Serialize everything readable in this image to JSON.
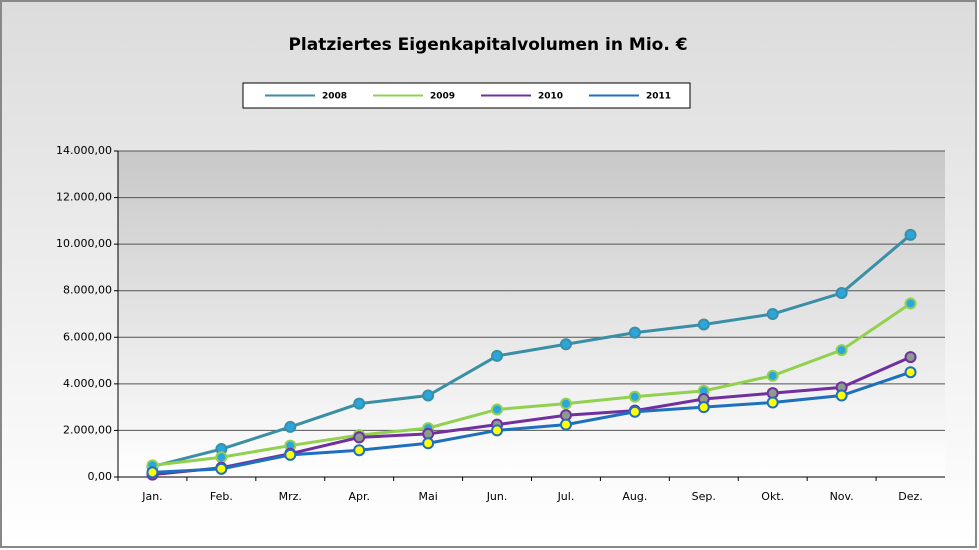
{
  "chart_data": {
    "type": "line",
    "title": "Platziertes Eigenkapitalvolumen in Mio. €",
    "categories": [
      "Jan.",
      "Feb.",
      "Mrz.",
      "Apr.",
      "Mai",
      "Jun.",
      "Jul.",
      "Aug.",
      "Sep.",
      "Okt.",
      "Nov.",
      "Dez."
    ],
    "series": [
      {
        "name": "2008",
        "color": "#3a8ea6",
        "marker_color": "#2aa6dc",
        "values": [
          450,
          1200,
          2150,
          3150,
          3500,
          5200,
          5700,
          6200,
          6550,
          7000,
          7900,
          10400
        ]
      },
      {
        "name": "2009",
        "color": "#92d050",
        "marker_color": "#2aa6dc",
        "values": [
          500,
          850,
          1350,
          1800,
          2100,
          2900,
          3150,
          3450,
          3700,
          4350,
          5450,
          7450
        ]
      },
      {
        "name": "2010",
        "color": "#7030a0",
        "marker_color": "#8c9c8c",
        "values": [
          100,
          400,
          1000,
          1700,
          1850,
          2250,
          2650,
          2850,
          3350,
          3600,
          3850,
          5150
        ]
      },
      {
        "name": "2011",
        "color": "#1f6fbf",
        "marker_color": "#ffff00",
        "values": [
          200,
          350,
          950,
          1150,
          1450,
          2000,
          2250,
          2800,
          3000,
          3200,
          3500,
          4500
        ]
      }
    ],
    "ylim": [
      0,
      14000
    ],
    "yticks": [
      {
        "value": 0,
        "label": "0,00"
      },
      {
        "value": 2000,
        "label": "2.000,00"
      },
      {
        "value": 4000,
        "label": "4.000,00"
      },
      {
        "value": 6000,
        "label": "6.000,00"
      },
      {
        "value": 8000,
        "label": "8.000,00"
      },
      {
        "value": 10000,
        "label": "10.000,00"
      },
      {
        "value": 12000,
        "label": "12.000,00"
      },
      {
        "value": 14000,
        "label": "14.000,00"
      }
    ],
    "grid": true,
    "legend": "top"
  }
}
